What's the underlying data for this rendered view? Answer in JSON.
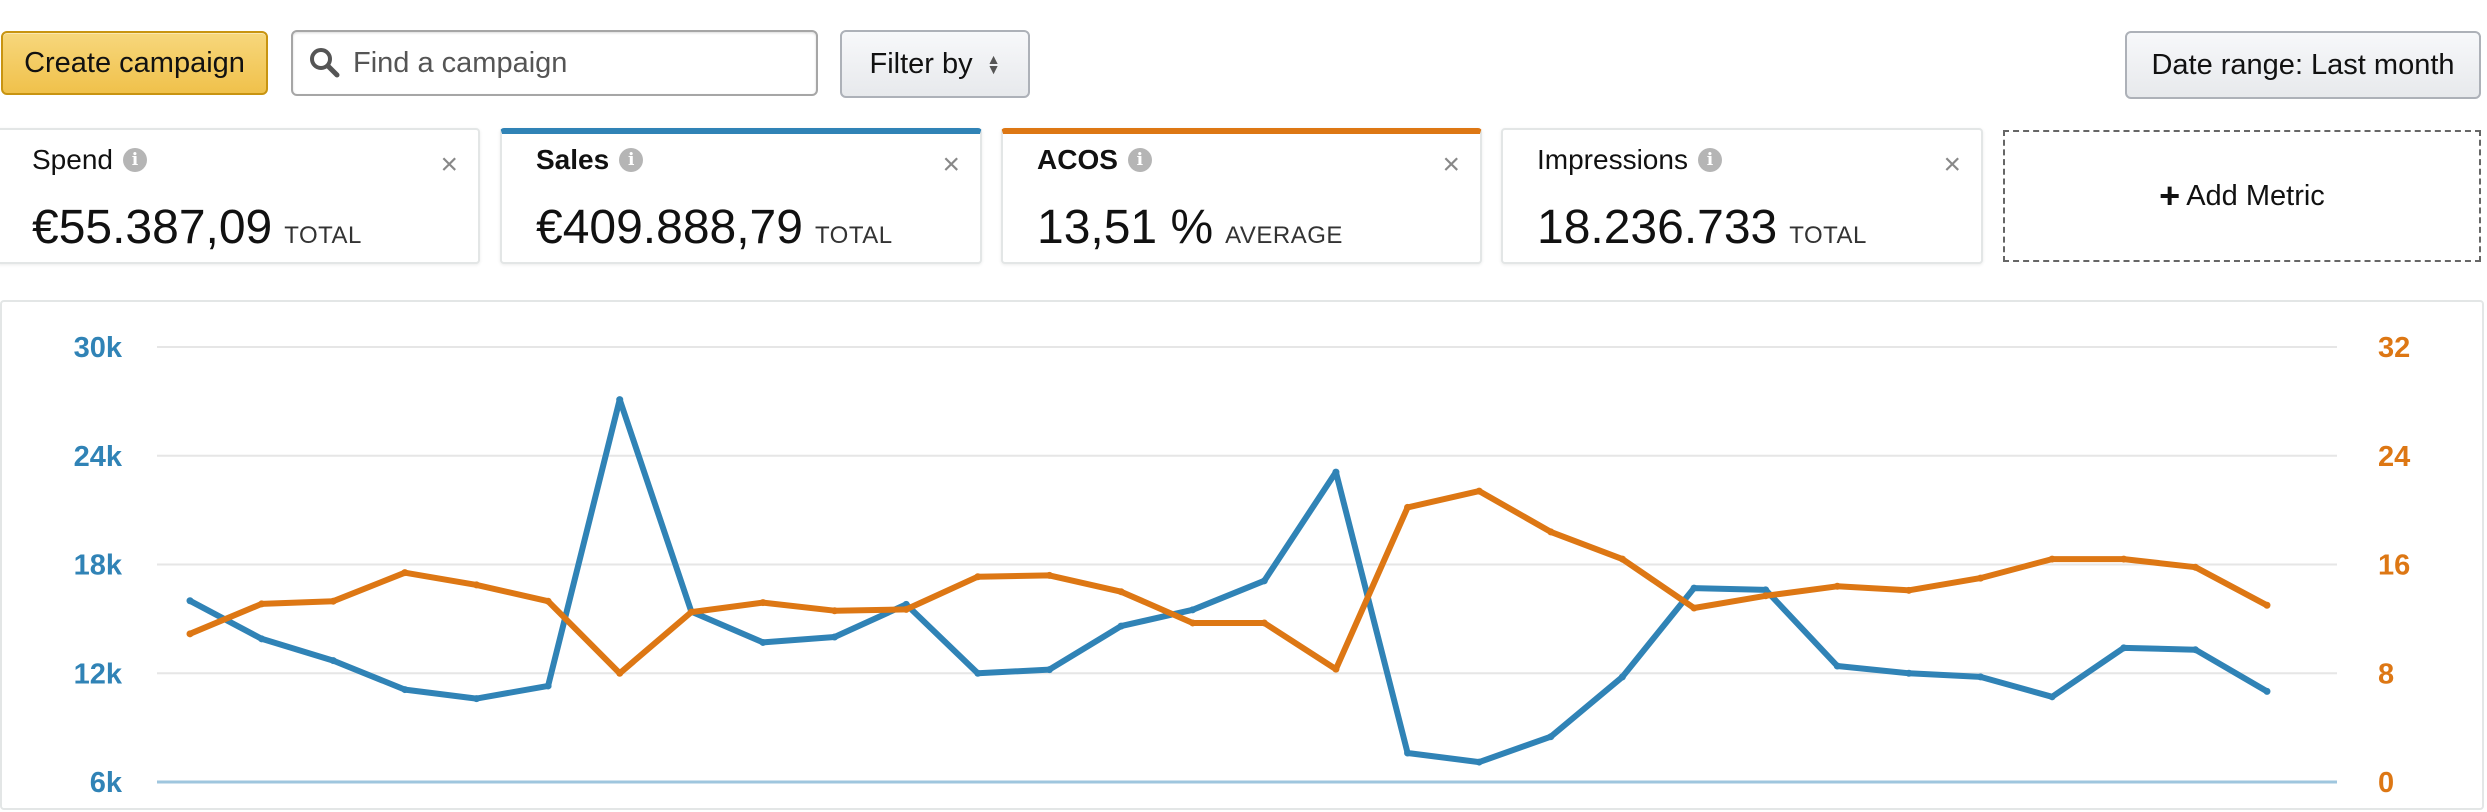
{
  "toolbar": {
    "create_label": "Create campaign",
    "search_placeholder": "Find a campaign",
    "filter_label": "Filter by",
    "date_range_label": "Date range: Last month"
  },
  "metrics": [
    {
      "title": "Spend",
      "value": "€55.387,09",
      "suffix": "TOTAL"
    },
    {
      "title": "Sales",
      "value": "€409.888,79",
      "suffix": "TOTAL"
    },
    {
      "title": "ACOS",
      "value": "13,51 %",
      "suffix": "AVERAGE"
    },
    {
      "title": "Impressions",
      "value": "18.236.733",
      "suffix": "TOTAL"
    }
  ],
  "add_metric_label": "Add Metric",
  "colors": {
    "sales": "#3083b6",
    "acos": "#dd7714",
    "primary": "#f0c14b"
  },
  "icons": {
    "search": "search-icon",
    "info": "info-icon",
    "close": "close-icon",
    "plus": "plus-icon",
    "sort": "sort-caret-icon"
  },
  "chart_data": {
    "type": "line",
    "title": "",
    "xlabel": "",
    "y_left": {
      "ticks": [
        "30k",
        "24k",
        "18k",
        "12k",
        "6k"
      ],
      "tick_values": [
        30000,
        24000,
        18000,
        12000,
        6000
      ],
      "ylim": [
        6000,
        30000
      ]
    },
    "y_right": {
      "ticks": [
        "32",
        "24",
        "16",
        "8",
        "0"
      ],
      "tick_values": [
        32,
        24,
        16,
        8,
        0
      ],
      "ylim": [
        0,
        32
      ]
    },
    "grid": true,
    "series": [
      {
        "axis": "left",
        "values": [
          16000,
          13900,
          12700,
          11100,
          10600,
          11300,
          27100,
          15400,
          13700,
          14000,
          15800,
          12000,
          12200,
          14600,
          15500,
          17100,
          23100,
          7600,
          7100,
          8500,
          11800,
          16700,
          16600,
          12400,
          12000,
          11800,
          10700,
          13400,
          13300,
          11000
        ]
      },
      {
        "axis": "right",
        "values": [
          10.9,
          13.1,
          13.3,
          15.4,
          14.5,
          13.3,
          8.0,
          12.5,
          13.2,
          12.6,
          12.7,
          15.1,
          15.2,
          14.0,
          11.7,
          11.7,
          8.3,
          20.2,
          21.4,
          18.4,
          16.4,
          12.8,
          13.7,
          14.4,
          14.1,
          15.0,
          16.4,
          16.4,
          15.8,
          13.0
        ]
      }
    ]
  }
}
